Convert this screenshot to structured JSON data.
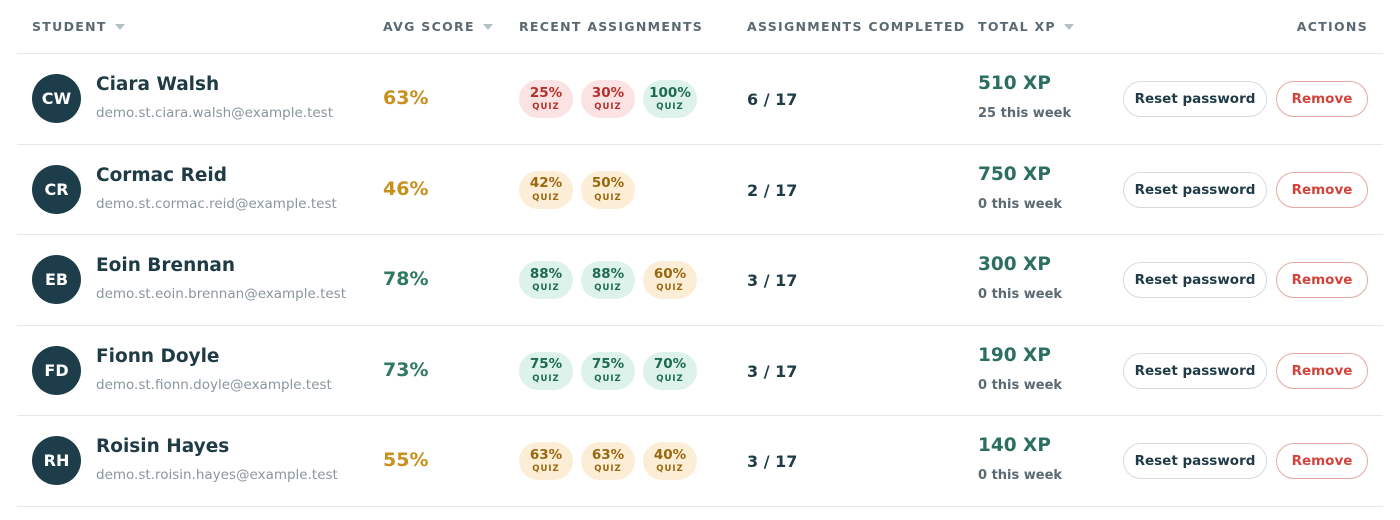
{
  "columns": {
    "student": "STUDENT",
    "avg_score": "AVG SCORE",
    "recent": "RECENT ASSIGNMENTS",
    "completed": "ASSIGNMENTS COMPLETED",
    "total_xp": "TOTAL XP",
    "actions": "ACTIONS"
  },
  "sortable_icon": "chevron-down-icon",
  "colors": {
    "avatar": "#1d3d4a",
    "avg_warn": "#c8901d",
    "avg_good": "#2f7a60",
    "xp": "#2c6e61",
    "remove": "#d2433c"
  },
  "actions": {
    "reset_label": "Reset password",
    "remove_label": "Remove"
  },
  "students": [
    {
      "initials": "CW",
      "name": "Ciara Walsh",
      "email": "demo.st.ciara.walsh@example.test",
      "avg": "63%",
      "avg_tone": "warn",
      "assignments": [
        {
          "score": "25%",
          "type": "QUIZ",
          "tone": "red"
        },
        {
          "score": "30%",
          "type": "QUIZ",
          "tone": "red"
        },
        {
          "score": "100%",
          "type": "QUIZ",
          "tone": "green"
        }
      ],
      "completed": "6 / 17",
      "xp": "510 XP",
      "week": "25 this week"
    },
    {
      "initials": "CR",
      "name": "Cormac Reid",
      "email": "demo.st.cormac.reid@example.test",
      "avg": "46%",
      "avg_tone": "warn",
      "assignments": [
        {
          "score": "42%",
          "type": "QUIZ",
          "tone": "yellow"
        },
        {
          "score": "50%",
          "type": "QUIZ",
          "tone": "yellow"
        }
      ],
      "completed": "2 / 17",
      "xp": "750 XP",
      "week": "0 this week"
    },
    {
      "initials": "EB",
      "name": "Eoin Brennan",
      "email": "demo.st.eoin.brennan@example.test",
      "avg": "78%",
      "avg_tone": "good",
      "assignments": [
        {
          "score": "88%",
          "type": "QUIZ",
          "tone": "green"
        },
        {
          "score": "88%",
          "type": "QUIZ",
          "tone": "green"
        },
        {
          "score": "60%",
          "type": "QUIZ",
          "tone": "yellow"
        }
      ],
      "completed": "3 / 17",
      "xp": "300 XP",
      "week": "0 this week"
    },
    {
      "initials": "FD",
      "name": "Fionn Doyle",
      "email": "demo.st.fionn.doyle@example.test",
      "avg": "73%",
      "avg_tone": "good",
      "assignments": [
        {
          "score": "75%",
          "type": "QUIZ",
          "tone": "green"
        },
        {
          "score": "75%",
          "type": "QUIZ",
          "tone": "green"
        },
        {
          "score": "70%",
          "type": "QUIZ",
          "tone": "green"
        }
      ],
      "completed": "3 / 17",
      "xp": "190 XP",
      "week": "0 this week"
    },
    {
      "initials": "RH",
      "name": "Roisin Hayes",
      "email": "demo.st.roisin.hayes@example.test",
      "avg": "55%",
      "avg_tone": "warn",
      "assignments": [
        {
          "score": "63%",
          "type": "QUIZ",
          "tone": "yellow"
        },
        {
          "score": "63%",
          "type": "QUIZ",
          "tone": "yellow"
        },
        {
          "score": "40%",
          "type": "QUIZ",
          "tone": "yellow"
        }
      ],
      "completed": "3 / 17",
      "xp": "140 XP",
      "week": "0 this week"
    }
  ]
}
